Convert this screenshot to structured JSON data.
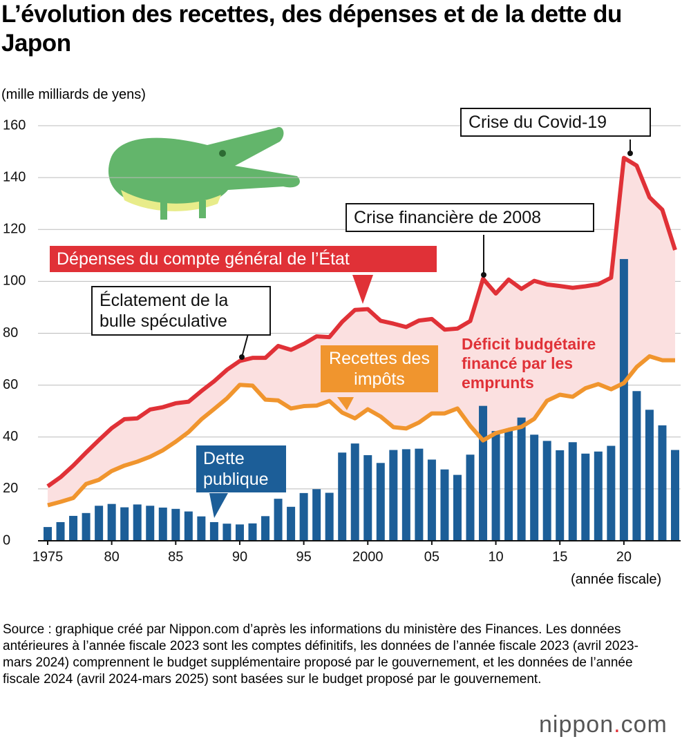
{
  "chart_data": {
    "type": "combo",
    "title": "L’évolution des recettes, des dépenses et de la dette du Japon",
    "y_label": "(mille milliards de yens)",
    "x_label": "(année fiscale)",
    "x": [
      1975,
      1976,
      1977,
      1978,
      1979,
      1980,
      1981,
      1982,
      1983,
      1984,
      1985,
      1986,
      1987,
      1988,
      1989,
      1990,
      1991,
      1992,
      1993,
      1994,
      1995,
      1996,
      1997,
      1998,
      1999,
      2000,
      2001,
      2002,
      2003,
      2004,
      2005,
      2006,
      2007,
      2008,
      2009,
      2010,
      2011,
      2012,
      2013,
      2014,
      2015,
      2016,
      2017,
      2018,
      2019,
      2020,
      2021,
      2022,
      2023,
      2024
    ],
    "series": [
      {
        "name": "Dépenses du compte général de l’État",
        "type": "line",
        "color": "#e03137",
        "values": [
          21,
          24.5,
          29,
          34,
          38.8,
          43.4,
          46.9,
          47.2,
          50.6,
          51.5,
          53,
          53.6,
          57.7,
          61.5,
          65.9,
          69.3,
          70.5,
          70.5,
          75.1,
          73.6,
          75.9,
          78.8,
          78.5,
          84.4,
          89,
          89.3,
          84.8,
          83.7,
          82.4,
          84.9,
          85.5,
          81.4,
          81.8,
          84.7,
          101,
          95.3,
          100.7,
          97.1,
          100.2,
          98.8,
          98.2,
          97.5,
          98.1,
          98.9,
          101.4,
          147.6,
          144.6,
          132.4,
          127.6,
          112.1
        ]
      },
      {
        "name": "Recettes des impôts",
        "type": "line",
        "color": "#f0952e",
        "values": [
          13.7,
          15,
          16.5,
          21.9,
          23.5,
          26.9,
          29,
          30.5,
          32.4,
          34.9,
          38.2,
          41.9,
          46.8,
          50.8,
          54.9,
          60.1,
          59.8,
          54.4,
          54.1,
          51,
          51.9,
          52.1,
          53.9,
          49.4,
          47.2,
          50.7,
          47.9,
          43.8,
          43.3,
          45.6,
          49.1,
          49.1,
          51,
          44.3,
          38.7,
          41.5,
          42.8,
          43.9,
          47,
          54,
          56.3,
          55.5,
          58.8,
          60.4,
          58.4,
          60.8,
          67,
          71.1,
          69.6,
          69.6
        ]
      },
      {
        "name": "Dette publique",
        "type": "bar",
        "color": "#1c5e98",
        "values": [
          5.3,
          7.2,
          9.6,
          10.7,
          13.5,
          14.2,
          12.9,
          14,
          13.5,
          12.8,
          12.3,
          11.3,
          9.4,
          7.2,
          6.6,
          6.3,
          6.7,
          9.5,
          16.2,
          13.1,
          18.4,
          19.9,
          18.5,
          34,
          37.5,
          33,
          30,
          35,
          35.3,
          35.5,
          31.3,
          27.5,
          25.4,
          33.2,
          52,
          42.3,
          42.8,
          47.5,
          40.9,
          38.5,
          34.9,
          38,
          33.6,
          34.4,
          36.6,
          108.6,
          57.7,
          50.5,
          44.5,
          35
        ]
      }
    ],
    "area_label": "Déficit budgétaire financé par les emprunts",
    "area_color": "#fbe0e0",
    "annotations": [
      "Éclatement de la bulle spéculative",
      "Crise financière de 2008",
      "Crise du Covid-19"
    ],
    "xlim": [
      1975,
      2024
    ],
    "xticks": [
      1975,
      {
        "value": 1980,
        "label": "80"
      },
      {
        "value": 1985,
        "label": "85"
      },
      {
        "value": 1990,
        "label": "90"
      },
      {
        "value": 1995,
        "label": "95"
      },
      2000,
      {
        "value": 2005,
        "label": "05"
      },
      {
        "value": 2010,
        "label": "10"
      },
      {
        "value": 2015,
        "label": "15"
      },
      {
        "value": 2020,
        "label": "20"
      }
    ],
    "ylim": [
      0,
      160
    ],
    "yticks": [
      0,
      20,
      40,
      60,
      80,
      100,
      120,
      140,
      160
    ],
    "grid": true
  },
  "source": "Source : graphique créé par Nippon.com d’après les informations du ministère des Finances. Les données antérieures à l’année fiscale 2023 sont les comptes définitifs, les données de l’année fiscale 2023 (avril 2023-mars 2024) comprennent le budget supplémentaire proposé par le gouvernement, et les données de l’année fiscale 2024 (avril 2024-mars 2025) sont basées sur le budget proposé par le gouvernement.",
  "logo": {
    "main": "nippon",
    "dot": ".",
    "tld": "com"
  }
}
